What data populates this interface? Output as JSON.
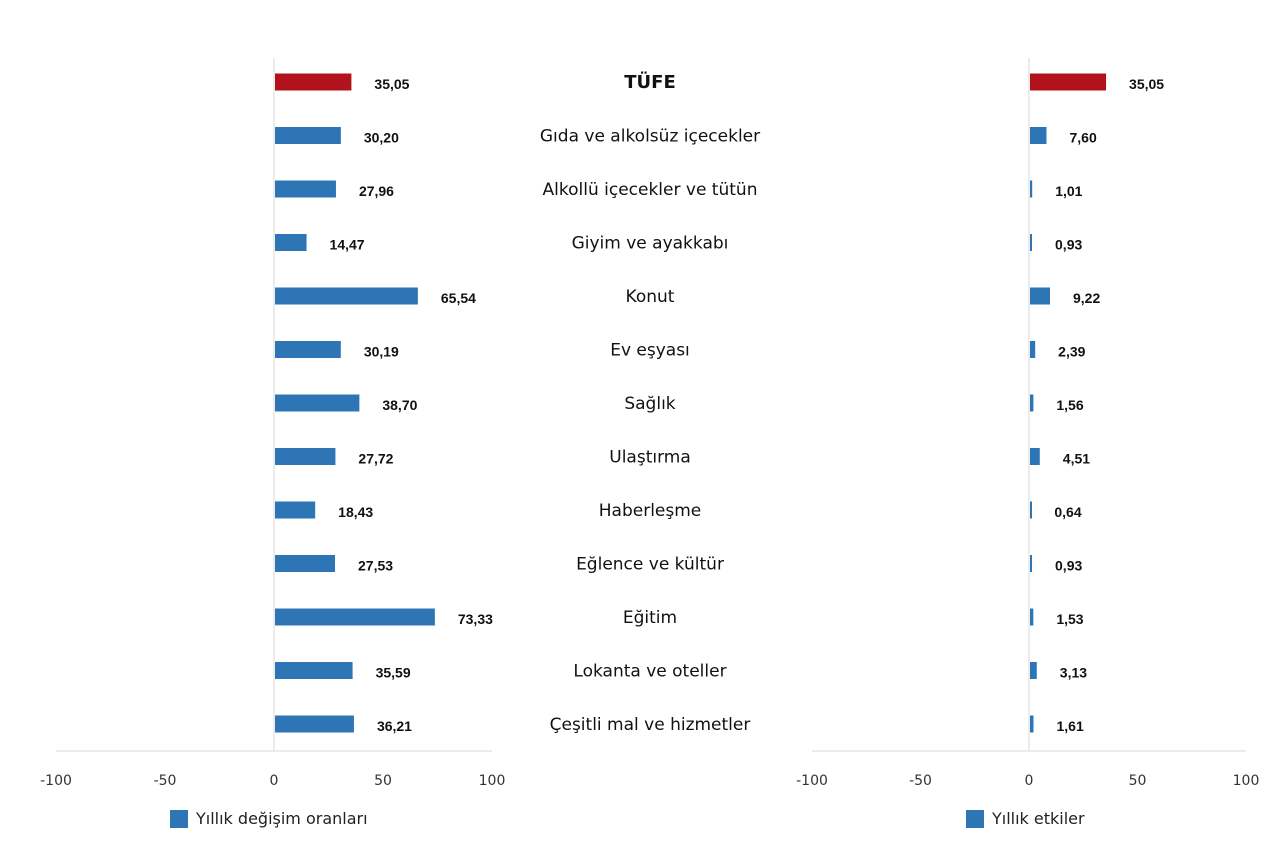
{
  "chart_data": [
    {
      "type": "bar",
      "orientation": "horizontal",
      "categories": [
        "TÜFE",
        "Gıda ve alkolsüz içecekler",
        "Alkollü içecekler ve tütün",
        "Giyim ve ayakkabı",
        "Konut",
        "Ev eşyası",
        "Sağlık",
        "Ulaştırma",
        "Haberleşme",
        "Eğlence ve kültür",
        "Eğitim",
        "Lokanta ve oteller",
        "Çeşitli mal ve hizmetler"
      ],
      "series": [
        {
          "name": "Yıllık değişim oranları",
          "values": [
            35.05,
            30.2,
            27.96,
            14.47,
            65.54,
            30.19,
            38.7,
            27.72,
            18.43,
            27.53,
            73.33,
            35.59,
            36.21
          ],
          "labels": [
            "35,05",
            "30,20",
            "27,96",
            "14,47",
            "65,54",
            "30,19",
            "38,70",
            "27,72",
            "18,43",
            "27,53",
            "73,33",
            "35,59",
            "36,21"
          ]
        }
      ],
      "xlim": [
        -100,
        100
      ],
      "xticks": [
        "-100",
        "-50",
        "0",
        "50",
        "100"
      ],
      "highlight_color": "#b2121c",
      "bar_color": "#2e75b6",
      "legend": "bottom"
    },
    {
      "type": "bar",
      "orientation": "horizontal",
      "categories": [
        "TÜFE",
        "Gıda ve alkolsüz içecekler",
        "Alkollü içecekler ve tütün",
        "Giyim ve ayakkabı",
        "Konut",
        "Ev eşyası",
        "Sağlık",
        "Ulaştırma",
        "Haberleşme",
        "Eğlence ve kültür",
        "Eğitim",
        "Lokanta ve oteller",
        "Çeşitli mal ve hizmetler"
      ],
      "series": [
        {
          "name": "Yıllık etkiler",
          "values": [
            35.05,
            7.6,
            1.01,
            0.93,
            9.22,
            2.39,
            1.56,
            4.51,
            0.64,
            0.93,
            1.53,
            3.13,
            1.61
          ],
          "labels": [
            "35,05",
            "7,60",
            "1,01",
            "0,93",
            "9,22",
            "2,39",
            "1,56",
            "4,51",
            "0,64",
            "0,93",
            "1,53",
            "3,13",
            "1,61"
          ]
        }
      ],
      "xlim": [
        -100,
        100
      ],
      "xticks": [
        "-100",
        "-50",
        "0",
        "50",
        "100"
      ],
      "highlight_color": "#b2121c",
      "bar_color": "#2e75b6",
      "legend": "bottom"
    }
  ],
  "legend": {
    "left_label": "Yıllık değişim oranları",
    "right_label": "Yıllık etkiler"
  }
}
